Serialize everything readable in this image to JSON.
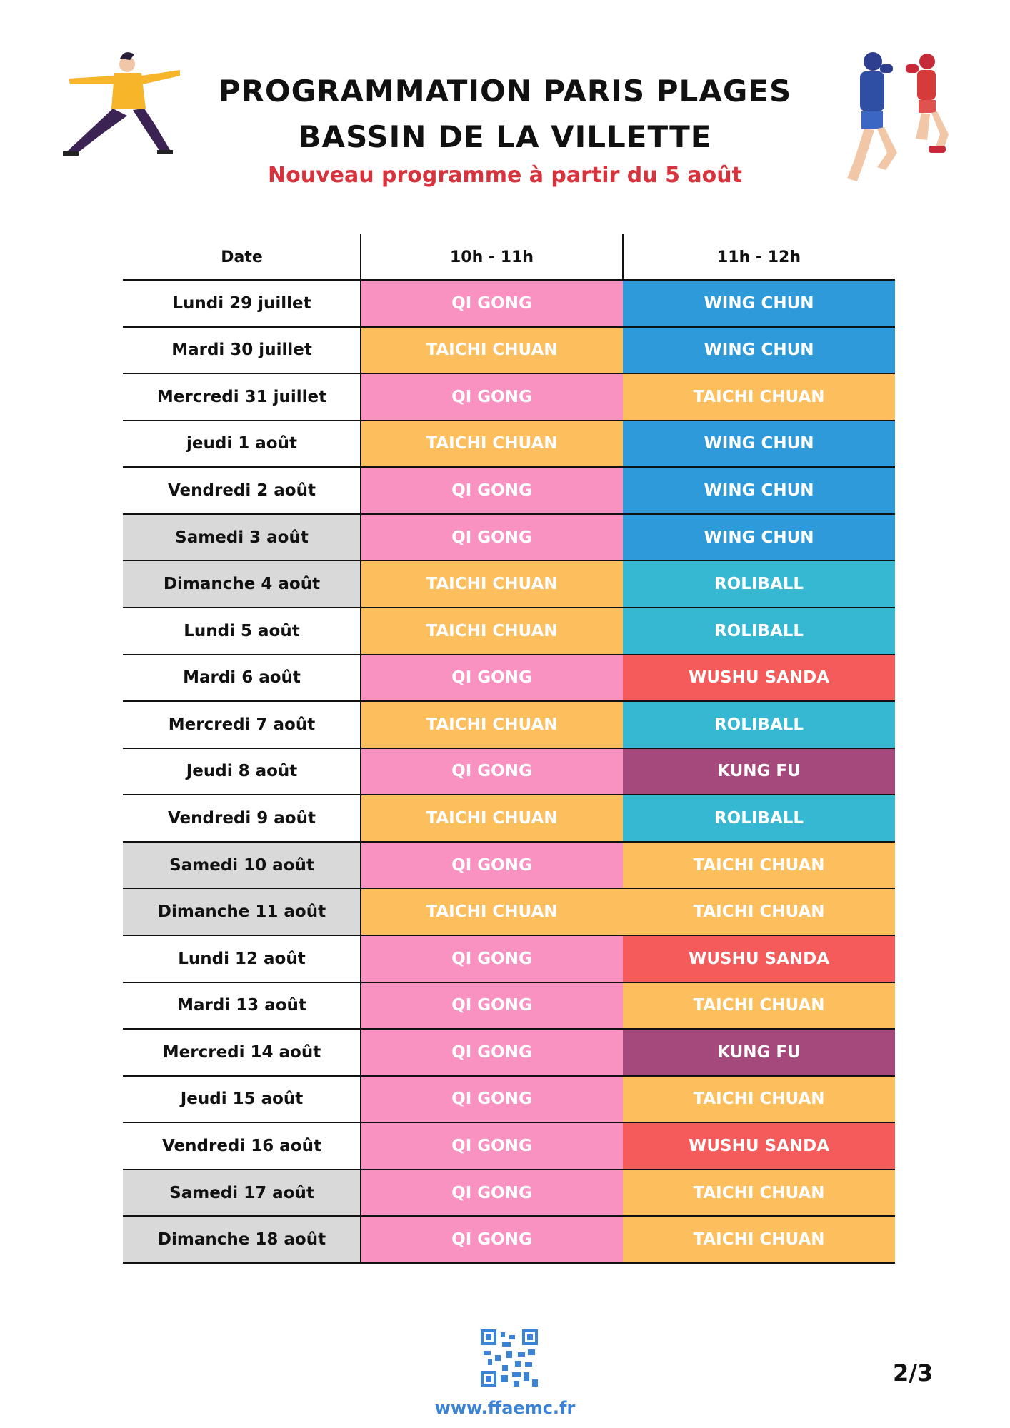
{
  "header": {
    "title_line1": "PROGRAMMATION PARIS PLAGES",
    "title_line2": "BASSIN DE LA VILLETTE",
    "subtitle": "Nouveau programme à partir du 5 août"
  },
  "table": {
    "columns": [
      "Date",
      "10h - 11h",
      "11h - 12h"
    ],
    "activity_colors": {
      "QI GONG": "#f991c1",
      "TAICHI CHUAN": "#fdbe5d",
      "WING CHUN": "#2f9ad9",
      "ROLIBALL": "#36b8d3",
      "WUSHU SANDA": "#f45b5a",
      "KUNG FU": "#a5487b"
    },
    "shaded_date_color": "#d9d9d9",
    "rows": [
      {
        "date": "Lundi 29 juillet",
        "slots": [
          "QI GONG",
          "WING CHUN"
        ],
        "shaded": false
      },
      {
        "date": "Mardi 30 juillet",
        "slots": [
          "TAICHI CHUAN",
          "WING CHUN"
        ],
        "shaded": false
      },
      {
        "date": "Mercredi 31 juillet",
        "slots": [
          "QI GONG",
          "TAICHI CHUAN"
        ],
        "shaded": false
      },
      {
        "date": "jeudi 1 août",
        "slots": [
          "TAICHI CHUAN",
          "WING CHUN"
        ],
        "shaded": false
      },
      {
        "date": "Vendredi 2 août",
        "slots": [
          "QI GONG",
          "WING CHUN"
        ],
        "shaded": false
      },
      {
        "date": "Samedi 3 août",
        "slots": [
          "QI GONG",
          "WING CHUN"
        ],
        "shaded": true
      },
      {
        "date": "Dimanche 4 août",
        "slots": [
          "TAICHI CHUAN",
          "ROLIBALL"
        ],
        "shaded": true
      },
      {
        "date": "Lundi 5 août",
        "slots": [
          "TAICHI CHUAN",
          "ROLIBALL"
        ],
        "shaded": false
      },
      {
        "date": "Mardi 6 août",
        "slots": [
          "QI GONG",
          "WUSHU SANDA"
        ],
        "shaded": false
      },
      {
        "date": "Mercredi 7 août",
        "slots": [
          "TAICHI CHUAN",
          "ROLIBALL"
        ],
        "shaded": false
      },
      {
        "date": "Jeudi 8 août",
        "slots": [
          "QI GONG",
          "KUNG FU"
        ],
        "shaded": false
      },
      {
        "date": "Vendredi 9 août",
        "slots": [
          "TAICHI CHUAN",
          "ROLIBALL"
        ],
        "shaded": false
      },
      {
        "date": "Samedi 10 août",
        "slots": [
          "QI GONG",
          "TAICHI CHUAN"
        ],
        "shaded": true
      },
      {
        "date": "Dimanche 11 août",
        "slots": [
          "TAICHI CHUAN",
          "TAICHI CHUAN"
        ],
        "shaded": true
      },
      {
        "date": "Lundi 12 août",
        "slots": [
          "QI GONG",
          "WUSHU SANDA"
        ],
        "shaded": false
      },
      {
        "date": "Mardi 13 août",
        "slots": [
          "QI GONG",
          "TAICHI CHUAN"
        ],
        "shaded": false
      },
      {
        "date": "Mercredi 14 août",
        "slots": [
          "QI GONG",
          "KUNG FU"
        ],
        "shaded": false
      },
      {
        "date": "Jeudi 15 août",
        "slots": [
          "QI GONG",
          "TAICHI CHUAN"
        ],
        "shaded": false
      },
      {
        "date": "Vendredi 16 août",
        "slots": [
          "QI GONG",
          "WUSHU SANDA"
        ],
        "shaded": false
      },
      {
        "date": "Samedi 17 août",
        "slots": [
          "QI GONG",
          "TAICHI CHUAN"
        ],
        "shaded": true
      },
      {
        "date": "Dimanche 18 août",
        "slots": [
          "QI GONG",
          "TAICHI CHUAN"
        ],
        "shaded": true
      }
    ]
  },
  "footer": {
    "url": "www.ffaemc.fr",
    "page": "2/3"
  }
}
